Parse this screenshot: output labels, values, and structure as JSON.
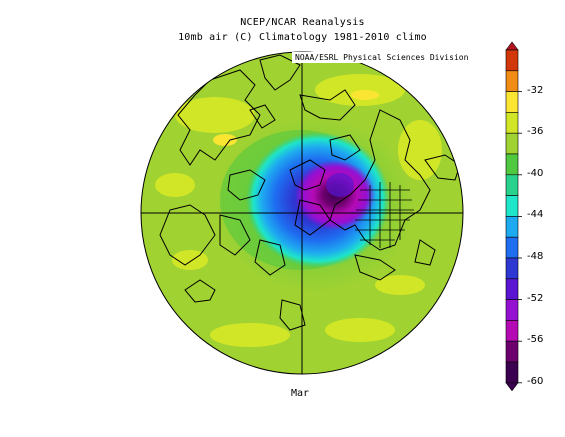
{
  "title": {
    "line1": "NCEP/NCAR Reanalysis",
    "line2": "10mb air (C) Climatology 1981-2010 climo"
  },
  "credit": "NOAA/ESRL Physical Sciences Division",
  "month": "Mar",
  "colorbar": {
    "labels": [
      "-32",
      "-36",
      "-40",
      "-44",
      "-48",
      "-52",
      "-56",
      "-60"
    ],
    "colors": [
      "#d2370a",
      "#f08c16",
      "#fae632",
      "#d2e628",
      "#a0d232",
      "#50c840",
      "#28d28c",
      "#1ee6c8",
      "#1eaaf0",
      "#1e6ef0",
      "#2d37d2",
      "#5a14d2",
      "#9610d2",
      "#b40ab4",
      "#6e006e",
      "#3c0050"
    ]
  },
  "map": {
    "projection": "north-polar-stereographic",
    "cold_core_min_c": -60,
    "background_c": -40
  }
}
